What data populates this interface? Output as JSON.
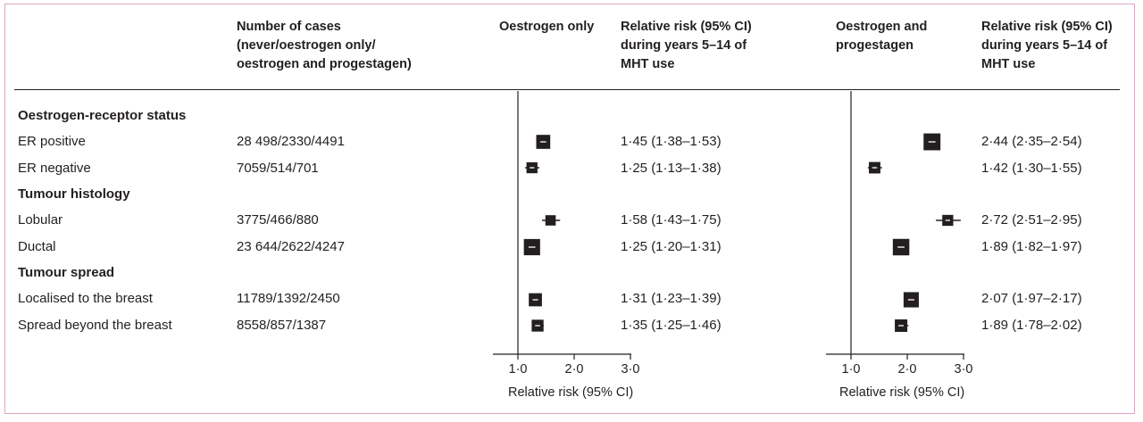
{
  "headers": {
    "cases": "Number of cases\n(never/oestrogen only/\noestrogen and progestagen)",
    "oestrogen_only": "Oestrogen only",
    "rr_oestrogen_only": "Relative risk (95% CI)\nduring years 5–14 of\nMHT use",
    "oestrogen_progestagen": "Oestrogen and\nprogestagen",
    "rr_oestrogen_progestagen": "Relative risk (95% CI)\nduring years 5–14 of\nMHT use"
  },
  "sections": [
    "Oestrogen-receptor status",
    "Tumour histology",
    "Tumour spread"
  ],
  "rows": [
    {
      "label": "ER positive",
      "cases": "28 498/2330/4491",
      "rr_oestrogen_only": "1·45 (1·38–1·53)",
      "rr_oestrogen_progestagen": "2·44 (2·35–2·54)"
    },
    {
      "label": "ER negative",
      "cases": "7059/514/701",
      "rr_oestrogen_only": "1·25 (1·13–1·38)",
      "rr_oestrogen_progestagen": "1·42 (1·30–1·55)"
    },
    {
      "label": "Lobular",
      "cases": "3775/466/880",
      "rr_oestrogen_only": "1·58 (1·43–1·75)",
      "rr_oestrogen_progestagen": "2·72 (2·51–2·95)"
    },
    {
      "label": "Ductal",
      "cases": "23 644/2622/4247",
      "rr_oestrogen_only": "1·25 (1·20–1·31)",
      "rr_oestrogen_progestagen": "1·89 (1·82–1·97)"
    },
    {
      "label": "Localised to the breast",
      "cases": "11789/1392/2450",
      "rr_oestrogen_only": "1·31 (1·23–1·39)",
      "rr_oestrogen_progestagen": "2·07 (1·97–2·17)"
    },
    {
      "label": "Spread beyond the breast",
      "cases": "8558/857/1387",
      "rr_oestrogen_only": "1·35 (1·25–1·46)",
      "rr_oestrogen_progestagen": "1·89 (1·78–2·02)"
    }
  ],
  "axes": {
    "ticks": [
      "1·0",
      "2·0",
      "3·0"
    ],
    "title": "Relative risk (95% CI)"
  },
  "colors": {
    "marker": "#231f20",
    "frame": "#d9a7c3"
  },
  "chart_data": {
    "type": "scatter",
    "xlim": [
      1,
      3
    ],
    "reference_line": 1,
    "categories": [
      "ER positive",
      "ER negative",
      "Lobular",
      "Ductal",
      "Localised to the breast",
      "Spread beyond the breast"
    ],
    "series": [
      {
        "name": "Oestrogen only",
        "values": [
          1.45,
          1.25,
          1.58,
          1.25,
          1.31,
          1.35
        ],
        "ci_low": [
          1.38,
          1.13,
          1.43,
          1.2,
          1.23,
          1.25
        ],
        "ci_high": [
          1.53,
          1.38,
          1.75,
          1.31,
          1.39,
          1.46
        ],
        "weights": [
          0.62,
          0.38,
          0.33,
          0.8,
          0.55,
          0.45
        ]
      },
      {
        "name": "Oestrogen and progestagen",
        "values": [
          2.44,
          1.42,
          2.72,
          1.89,
          2.07,
          1.89
        ],
        "ci_low": [
          2.35,
          1.3,
          2.51,
          1.82,
          1.97,
          1.78
        ],
        "ci_high": [
          2.54,
          1.55,
          2.95,
          1.97,
          2.17,
          2.02
        ],
        "weights": [
          0.85,
          0.42,
          0.38,
          0.82,
          0.72,
          0.5
        ]
      }
    ]
  }
}
